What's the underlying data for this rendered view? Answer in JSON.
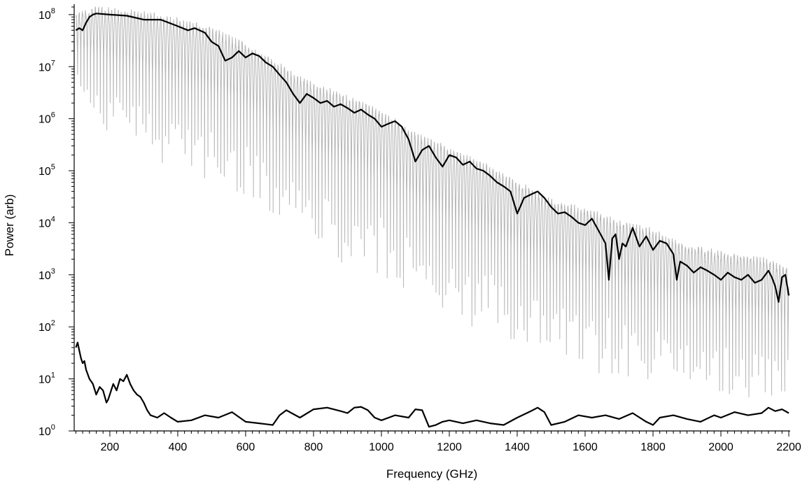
{
  "chart_data": {
    "type": "line",
    "xlabel": "Frequency (GHz)",
    "ylabel": "Power (arb)",
    "x_range": [
      95,
      2200
    ],
    "y_scale": "log",
    "y_range": [
      1,
      140000000
    ],
    "grid": false,
    "legend": "none",
    "x_ticks": [
      200,
      400,
      600,
      800,
      1000,
      1200,
      1400,
      1600,
      1800,
      2000,
      2200
    ],
    "x_tick_labels": [
      "200",
      "400",
      "600",
      "800",
      "1000",
      "1200",
      "1400",
      "1600",
      "1800",
      "2000",
      "2200"
    ],
    "y_ticks": [
      {
        "value": 1,
        "base": "10",
        "exp": "0"
      },
      {
        "value": 10,
        "base": "10",
        "exp": "1"
      },
      {
        "value": 100,
        "base": "10",
        "exp": "2"
      },
      {
        "value": 1000,
        "base": "10",
        "exp": "3"
      },
      {
        "value": 10000,
        "base": "10",
        "exp": "4"
      },
      {
        "value": 100000,
        "base": "10",
        "exp": "5"
      },
      {
        "value": 1000000,
        "base": "10",
        "exp": "6"
      },
      {
        "value": 10000000,
        "base": "10",
        "exp": "7"
      },
      {
        "value": 100000000,
        "base": "10",
        "exp": "8"
      }
    ],
    "series": [
      {
        "color": "#b5b5b5",
        "style": "raw-oscillating",
        "x": [
          100,
          150,
          200,
          300,
          400,
          500,
          600,
          700,
          800,
          900,
          1000,
          1100,
          1200,
          1300,
          1400,
          1500,
          1600,
          1700,
          1800,
          1900,
          2000,
          2100,
          2200
        ],
        "upper_envelope": [
          110000000,
          150000000,
          140000000,
          120000000,
          90000000,
          60000000,
          30000000,
          12000000,
          5000000,
          3000000,
          1500000,
          600000,
          300000,
          150000,
          70000,
          30000,
          20000,
          12000,
          8000,
          4000,
          3000,
          2500,
          1500
        ],
        "lower_envelope": [
          3000000,
          1000000,
          500000,
          200000,
          100000,
          50000,
          30000,
          10000,
          3000,
          1500,
          1000,
          300,
          150,
          80,
          40,
          25,
          15,
          10,
          8,
          6,
          5,
          4,
          3
        ]
      },
      {
        "color": "#000000",
        "style": "smoothed",
        "x": [
          100,
          110,
          120,
          130,
          140,
          150,
          160,
          200,
          250,
          300,
          350,
          400,
          430,
          450,
          480,
          500,
          520,
          540,
          560,
          580,
          600,
          620,
          640,
          660,
          680,
          700,
          720,
          740,
          760,
          780,
          800,
          820,
          840,
          860,
          880,
          900,
          920,
          940,
          960,
          980,
          1000,
          1020,
          1040,
          1060,
          1080,
          1100,
          1120,
          1140,
          1160,
          1180,
          1200,
          1220,
          1240,
          1260,
          1280,
          1300,
          1320,
          1340,
          1360,
          1380,
          1400,
          1420,
          1440,
          1460,
          1480,
          1500,
          1520,
          1540,
          1560,
          1580,
          1600,
          1620,
          1640,
          1660,
          1670,
          1680,
          1690,
          1700,
          1710,
          1720,
          1740,
          1760,
          1780,
          1800,
          1820,
          1840,
          1860,
          1870,
          1880,
          1900,
          1920,
          1940,
          1960,
          1980,
          2000,
          2020,
          2040,
          2060,
          2080,
          2100,
          2120,
          2140,
          2150,
          2160,
          2170,
          2180,
          2190,
          2200
        ],
        "y": [
          50000000,
          55000000,
          50000000,
          70000000,
          90000000,
          100000000,
          105000000,
          100000000,
          95000000,
          80000000,
          80000000,
          60000000,
          50000000,
          55000000,
          45000000,
          30000000,
          25000000,
          13000000,
          15000000,
          20000000,
          15000000,
          18000000,
          16000000,
          12000000,
          10000000,
          7000000,
          5000000,
          3000000,
          2000000,
          3000000,
          2500000,
          2000000,
          2200000,
          1700000,
          1900000,
          1600000,
          1300000,
          1500000,
          1200000,
          1000000,
          700000,
          800000,
          900000,
          700000,
          400000,
          150000,
          250000,
          300000,
          180000,
          120000,
          200000,
          180000,
          130000,
          150000,
          110000,
          100000,
          80000,
          60000,
          50000,
          40000,
          15000,
          30000,
          35000,
          40000,
          30000,
          20000,
          15000,
          16000,
          13000,
          10000,
          9000,
          12000,
          7000,
          4000,
          800,
          5000,
          6000,
          2000,
          4000,
          3500,
          8000,
          3500,
          5500,
          3000,
          4500,
          4000,
          2500,
          800,
          1800,
          1500,
          1100,
          1400,
          1200,
          1000,
          800,
          1100,
          900,
          800,
          1000,
          700,
          800,
          1200,
          900,
          600,
          300,
          900,
          1000,
          400
        ]
      },
      {
        "color": "#000000",
        "style": "smoothed",
        "x": [
          100,
          105,
          110,
          115,
          120,
          125,
          130,
          140,
          150,
          160,
          170,
          180,
          190,
          195,
          200,
          210,
          220,
          230,
          240,
          250,
          260,
          270,
          280,
          290,
          300,
          310,
          320,
          340,
          360,
          380,
          400,
          440,
          480,
          520,
          560,
          600,
          640,
          680,
          700,
          720,
          760,
          800,
          840,
          880,
          900,
          920,
          940,
          960,
          980,
          1000,
          1040,
          1080,
          1100,
          1120,
          1140,
          1160,
          1180,
          1200,
          1240,
          1280,
          1320,
          1360,
          1400,
          1440,
          1460,
          1480,
          1500,
          1540,
          1580,
          1620,
          1660,
          1700,
          1740,
          1780,
          1800,
          1820,
          1860,
          1900,
          1940,
          1980,
          2000,
          2040,
          2080,
          2120,
          2140,
          2160,
          2180,
          2200
        ],
        "y": [
          40,
          50,
          35,
          25,
          20,
          22,
          15,
          10,
          8,
          5,
          7,
          6,
          3.5,
          4,
          5,
          8,
          6,
          10,
          9,
          12,
          8,
          6,
          5,
          4.5,
          3.5,
          2.5,
          2,
          1.8,
          2.2,
          1.8,
          1.5,
          1.6,
          2,
          1.8,
          2.3,
          1.5,
          1.4,
          1.3,
          2,
          2.5,
          1.8,
          2.6,
          2.8,
          2.4,
          2.2,
          2.8,
          2.9,
          2.5,
          1.8,
          1.6,
          2,
          1.8,
          2.6,
          2.5,
          1.2,
          1.3,
          1.5,
          1.6,
          1.4,
          1.6,
          1.4,
          1.3,
          1.8,
          2.4,
          2.8,
          2.3,
          1.3,
          1.5,
          2,
          1.8,
          2,
          1.7,
          2.2,
          1.5,
          1.3,
          1.8,
          2,
          1.7,
          1.5,
          2,
          1.8,
          2.3,
          2,
          2.2,
          2.8,
          2.4,
          2.6,
          2.2
        ]
      }
    ]
  }
}
